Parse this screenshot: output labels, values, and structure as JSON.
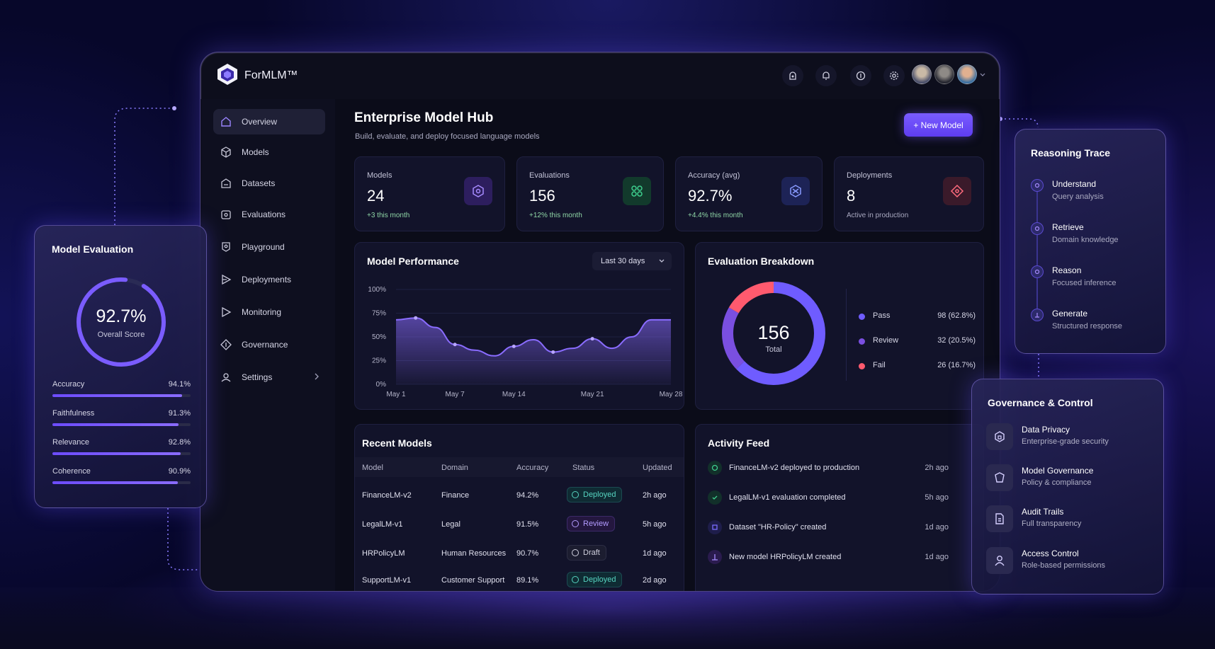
{
  "app": {
    "brand": "ForMLM™"
  },
  "header": {
    "icons": [
      "account-icon",
      "bell-icon",
      "help-icon",
      "settings-icon"
    ]
  },
  "sidebar": {
    "items": [
      {
        "label": "Overview",
        "icon": "home-icon",
        "active": true
      },
      {
        "label": "Models",
        "icon": "cube-icon"
      },
      {
        "label": "Datasets",
        "icon": "database-icon"
      },
      {
        "label": "Evaluations",
        "icon": "clipboard-icon"
      },
      {
        "label": "Playground",
        "icon": "play-icon"
      },
      {
        "label": "Deployments",
        "icon": "rocket-icon"
      },
      {
        "label": "Monitoring",
        "icon": "monitor-icon"
      },
      {
        "label": "Governance",
        "icon": "shield-icon"
      },
      {
        "label": "Settings",
        "icon": "gear-icon"
      }
    ]
  },
  "main": {
    "title": "Enterprise Model Hub",
    "subtitle": "Build, evaluate, and deploy focused language models",
    "new_button": "+ New Model",
    "stats": [
      {
        "label": "Models",
        "value": "24",
        "sub": "+3 this month",
        "color": "#8a5cff"
      },
      {
        "label": "Evaluations",
        "value": "156",
        "sub": "+12% this month",
        "color": "#3ecf8e"
      },
      {
        "label": "Accuracy (avg)",
        "value": "92.7%",
        "sub": "+4.4% this month",
        "color": "#6f7dff"
      },
      {
        "label": "Deployments",
        "value": "8",
        "sub": "Active in production",
        "color": "#ff6b7d"
      }
    ]
  },
  "performance": {
    "title": "Model Performance",
    "range": "Last 30 days",
    "chart_data": {
      "type": "area",
      "x": [
        "May 1",
        "May 3",
        "May 5",
        "May 7",
        "May 9",
        "May 11",
        "May 13",
        "May 15",
        "May 17",
        "May 19",
        "May 21",
        "May 23",
        "May 25",
        "May 27",
        "May 29"
      ],
      "values": [
        68,
        70,
        60,
        42,
        36,
        30,
        40,
        47,
        34,
        38,
        48,
        38,
        50,
        68,
        68
      ],
      "xticks": [
        "May 1",
        "May 7",
        "May 14",
        "May 21",
        "May 28"
      ],
      "yticks": [
        "0%",
        "25%",
        "50%",
        "75%",
        "100%"
      ],
      "ylim": [
        0,
        100
      ],
      "color": "#8a6cff"
    }
  },
  "breakdown": {
    "title": "Evaluation Breakdown",
    "total": "156",
    "total_label": "Total",
    "chart_data": {
      "type": "pie",
      "categories": [
        "Pass",
        "Review",
        "Fail"
      ],
      "values": [
        98,
        32,
        26
      ],
      "labels": [
        "98 (62.8%)",
        "32 (20.5%)",
        "26 (16.7%)"
      ],
      "colors": [
        "#6f5cff",
        "#7a4fe0",
        "#ff5a6e"
      ]
    }
  },
  "recent_models": {
    "title": "Recent Models",
    "columns": [
      "Model",
      "Domain",
      "Accuracy",
      "Status",
      "Updated"
    ],
    "rows": [
      {
        "model": "FinanceLM-v2",
        "domain": "Finance",
        "accuracy": "94.2%",
        "status": "Deployed",
        "updated": "2h ago"
      },
      {
        "model": "LegalLM-v1",
        "domain": "Legal",
        "accuracy": "91.5%",
        "status": "Review",
        "updated": "5h ago"
      },
      {
        "model": "HRPolicyLM",
        "domain": "Human Resources",
        "accuracy": "90.7%",
        "status": "Draft",
        "updated": "1d ago"
      },
      {
        "model": "SupportLM-v1",
        "domain": "Customer Support",
        "accuracy": "89.1%",
        "status": "Deployed",
        "updated": "2d ago"
      }
    ]
  },
  "activity": {
    "title": "Activity Feed",
    "items": [
      {
        "text": "FinanceLM-v2 deployed to production",
        "time": "2h ago",
        "color": "#3ecf8e"
      },
      {
        "text": "LegalLM-v1 evaluation completed",
        "time": "5h ago",
        "color": "#3ecf8e"
      },
      {
        "text": "Dataset \"HR-Policy\" created",
        "time": "1d ago",
        "color": "#7a6cff"
      },
      {
        "text": "New model HRPolicyLM created",
        "time": "1d ago",
        "color": "#8a5cff"
      }
    ]
  },
  "model_eval": {
    "title": "Model Evaluation",
    "score": "92.7%",
    "score_label": "Overall Score",
    "score_value": 0.927,
    "metrics": [
      {
        "label": "Accuracy",
        "value": "94.1%",
        "fraction": 0.941
      },
      {
        "label": "Faithfulness",
        "value": "91.3%",
        "fraction": 0.913
      },
      {
        "label": "Relevance",
        "value": "92.8%",
        "fraction": 0.928
      },
      {
        "label": "Coherence",
        "value": "90.9%",
        "fraction": 0.909
      }
    ]
  },
  "reasoning": {
    "title": "Reasoning Trace",
    "steps": [
      {
        "name": "Understand",
        "desc": "Query analysis"
      },
      {
        "name": "Retrieve",
        "desc": "Domain knowledge"
      },
      {
        "name": "Reason",
        "desc": "Focused inference"
      },
      {
        "name": "Generate",
        "desc": "Structured response"
      }
    ]
  },
  "governance": {
    "title": "Governance & Control",
    "items": [
      {
        "name": "Data Privacy",
        "desc": "Enterprise-grade security",
        "icon": "lock-icon"
      },
      {
        "name": "Model Governance",
        "desc": "Policy & compliance",
        "icon": "shield-check-icon"
      },
      {
        "name": "Audit Trails",
        "desc": "Full transparency",
        "icon": "document-icon"
      },
      {
        "name": "Access Control",
        "desc": "Role-based permissions",
        "icon": "user-icon"
      }
    ]
  }
}
